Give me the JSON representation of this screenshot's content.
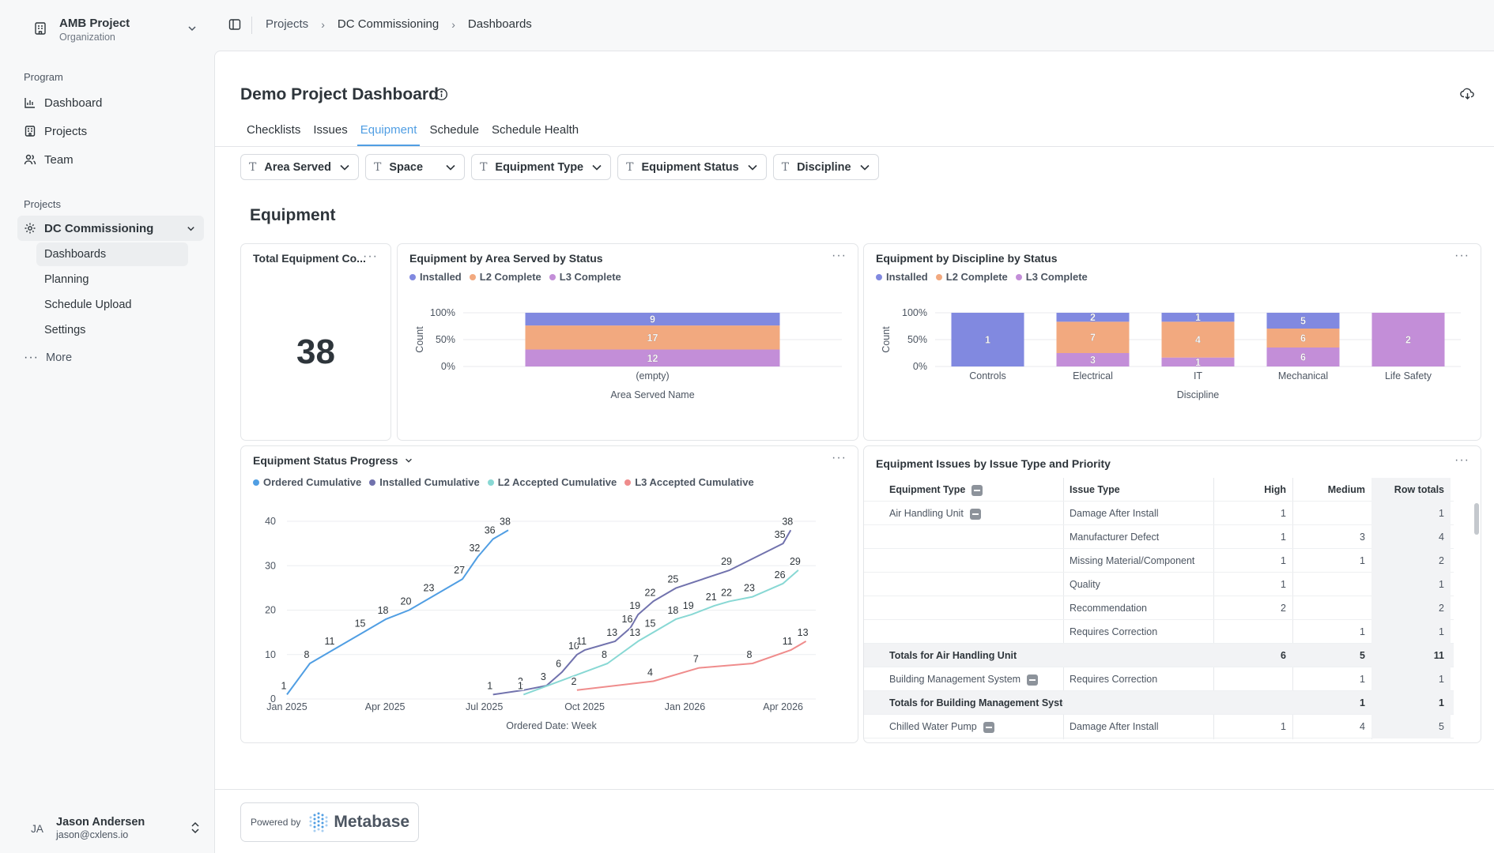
{
  "org": {
    "name": "AMB Project",
    "subtitle": "Organization"
  },
  "sidebar": {
    "program_label": "Program",
    "program_items": [
      {
        "label": "Dashboard",
        "icon": "bar-chart-icon"
      },
      {
        "label": "Projects",
        "icon": "building-icon"
      },
      {
        "label": "Team",
        "icon": "users-icon"
      }
    ],
    "projects_label": "Projects",
    "project_group": {
      "label": "DC Commissioning",
      "icon": "gear-icon"
    },
    "project_items": [
      "Dashboards",
      "Planning",
      "Schedule Upload",
      "Settings"
    ],
    "more_label": "More"
  },
  "user": {
    "initials": "JA",
    "name": "Jason Andersen",
    "email": "jason@cxlens.io"
  },
  "breadcrumbs": [
    "Projects",
    "DC Commissioning",
    "Dashboards"
  ],
  "dashboard": {
    "title": "Demo Project Dashboard",
    "tabs": [
      "Checklists",
      "Issues",
      "Equipment",
      "Schedule",
      "Schedule Health"
    ],
    "active_tab": "Equipment",
    "filters": [
      "Area Served",
      "Space",
      "Equipment Type",
      "Equipment Status",
      "Discipline"
    ],
    "section_title": "Equipment"
  },
  "colors": {
    "installed": "#8189e0",
    "l2": "#f2a97f",
    "l3": "#c38ed8",
    "ordered_cum": "#509ee3",
    "installed_cum": "#7172ad",
    "l2_cum": "#88d8d4",
    "l3_cum": "#ef8c8c",
    "accent": "#509ee3"
  },
  "cards": {
    "total": {
      "title": "Total Equipment Co...",
      "value": "38"
    },
    "area": {
      "title": "Equipment by Area Served by Status",
      "legend": [
        "Installed",
        "L2 Complete",
        "L3 Complete"
      ],
      "chart_data": {
        "type": "bar",
        "stacked": "percent",
        "categories": [
          "(empty)"
        ],
        "series": [
          {
            "name": "Installed",
            "values": [
              9
            ]
          },
          {
            "name": "L2 Complete",
            "values": [
              17
            ]
          },
          {
            "name": "L3 Complete",
            "values": [
              12
            ]
          }
        ],
        "xlabel": "Area Served Name",
        "ylabel": "Count",
        "yticks": [
          "0%",
          "50%",
          "100%"
        ]
      }
    },
    "discipline": {
      "title": "Equipment by Discipline by Status",
      "legend": [
        "Installed",
        "L2 Complete",
        "L3 Complete"
      ],
      "chart_data": {
        "type": "bar",
        "stacked": "percent",
        "categories": [
          "Controls",
          "Electrical",
          "IT",
          "Mechanical",
          "Life Safety"
        ],
        "series": [
          {
            "name": "Installed",
            "values": [
              1,
              2,
              1,
              5,
              0
            ]
          },
          {
            "name": "L2 Complete",
            "values": [
              0,
              7,
              4,
              6,
              0
            ]
          },
          {
            "name": "L3 Complete",
            "values": [
              0,
              3,
              1,
              6,
              2
            ]
          }
        ],
        "xlabel": "Discipline",
        "ylabel": "Count",
        "yticks": [
          "0%",
          "50%",
          "100%"
        ]
      }
    },
    "progress": {
      "title": "Equipment Status Progress",
      "legend": [
        "Ordered Cumulative",
        "Installed Cumulative",
        "L2 Accepted Cumulative",
        "L3 Accepted Cumulative"
      ],
      "chart_data": {
        "type": "line",
        "xlabel": "Ordered Date: Week",
        "xticks": [
          "Jan 2025",
          "Apr 2025",
          "Jul 2025",
          "Oct 2025",
          "Jan 2026",
          "Apr 2026"
        ],
        "yticks": [
          0,
          10,
          20,
          30,
          40
        ],
        "ylim": [
          0,
          40
        ],
        "series": [
          {
            "name": "Ordered Cumulative",
            "points": [
              [
                "2025-01-01",
                1
              ],
              [
                "2025-01-22",
                8
              ],
              [
                "2025-02-12",
                11
              ],
              [
                "2025-03-12",
                15
              ],
              [
                "2025-04-02",
                18
              ],
              [
                "2025-04-23",
                20
              ],
              [
                "2025-05-14",
                23
              ],
              [
                "2025-06-11",
                27
              ],
              [
                "2025-06-25",
                32
              ],
              [
                "2025-07-09",
                36
              ],
              [
                "2025-07-23",
                38
              ]
            ]
          },
          {
            "name": "Installed Cumulative",
            "points": [
              [
                "2025-07-09",
                1
              ],
              [
                "2025-08-06",
                2
              ],
              [
                "2025-08-27",
                3
              ],
              [
                "2025-09-10",
                6
              ],
              [
                "2025-09-24",
                10
              ],
              [
                "2025-10-01",
                11
              ],
              [
                "2025-10-29",
                13
              ],
              [
                "2025-11-12",
                16
              ],
              [
                "2025-11-19",
                19
              ],
              [
                "2025-12-03",
                22
              ],
              [
                "2025-12-24",
                25
              ],
              [
                "2026-02-11",
                29
              ],
              [
                "2026-04-01",
                35
              ],
              [
                "2026-04-08",
                38
              ]
            ]
          },
          {
            "name": "L2 Accepted Cumulative",
            "points": [
              [
                "2025-08-06",
                1
              ],
              [
                "2025-10-22",
                8
              ],
              [
                "2025-11-19",
                13
              ],
              [
                "2025-12-03",
                15
              ],
              [
                "2025-12-24",
                18
              ],
              [
                "2026-01-07",
                19
              ],
              [
                "2026-01-28",
                21
              ],
              [
                "2026-02-11",
                22
              ],
              [
                "2026-03-04",
                23
              ],
              [
                "2026-04-01",
                26
              ],
              [
                "2026-04-15",
                29
              ]
            ]
          },
          {
            "name": "L3 Accepted Cumulative",
            "points": [
              [
                "2025-09-24",
                2
              ],
              [
                "2025-12-03",
                4
              ],
              [
                "2026-01-14",
                7
              ],
              [
                "2026-03-04",
                8
              ],
              [
                "2026-04-08",
                11
              ],
              [
                "2026-04-22",
                13
              ]
            ]
          }
        ]
      }
    },
    "issues": {
      "title": "Equipment Issues by Issue Type and Priority",
      "headers": [
        "Equipment Type",
        "Issue Type",
        "High",
        "Medium",
        "Row totals"
      ],
      "rows": [
        {
          "equip": "Air Handling Unit",
          "issue": "Damage After Install",
          "high": "1",
          "medium": "",
          "total": "1"
        },
        {
          "equip": "",
          "issue": "Manufacturer Defect",
          "high": "1",
          "medium": "3",
          "total": "4"
        },
        {
          "equip": "",
          "issue": "Missing Material/Component",
          "high": "1",
          "medium": "1",
          "total": "2"
        },
        {
          "equip": "",
          "issue": "Quality",
          "high": "1",
          "medium": "",
          "total": "1"
        },
        {
          "equip": "",
          "issue": "Recommendation",
          "high": "2",
          "medium": "",
          "total": "2"
        },
        {
          "equip": "",
          "issue": "Requires Correction",
          "high": "",
          "medium": "1",
          "total": "1"
        },
        {
          "equip": "Totals for Air Handling Unit",
          "issue": "",
          "high": "6",
          "medium": "5",
          "total": "11",
          "subtotal": true
        },
        {
          "equip": "Building Management System",
          "issue": "Requires Correction",
          "high": "",
          "medium": "1",
          "total": "1"
        },
        {
          "equip": "Totals for Building Management System",
          "issue": "",
          "high": "",
          "medium": "1",
          "total": "1",
          "subtotal": true
        },
        {
          "equip": "Chilled Water Pump",
          "issue": "Damage After Install",
          "high": "1",
          "medium": "4",
          "total": "5"
        }
      ]
    }
  },
  "footer": {
    "powered_by": "Powered by",
    "brand": "Metabase"
  }
}
